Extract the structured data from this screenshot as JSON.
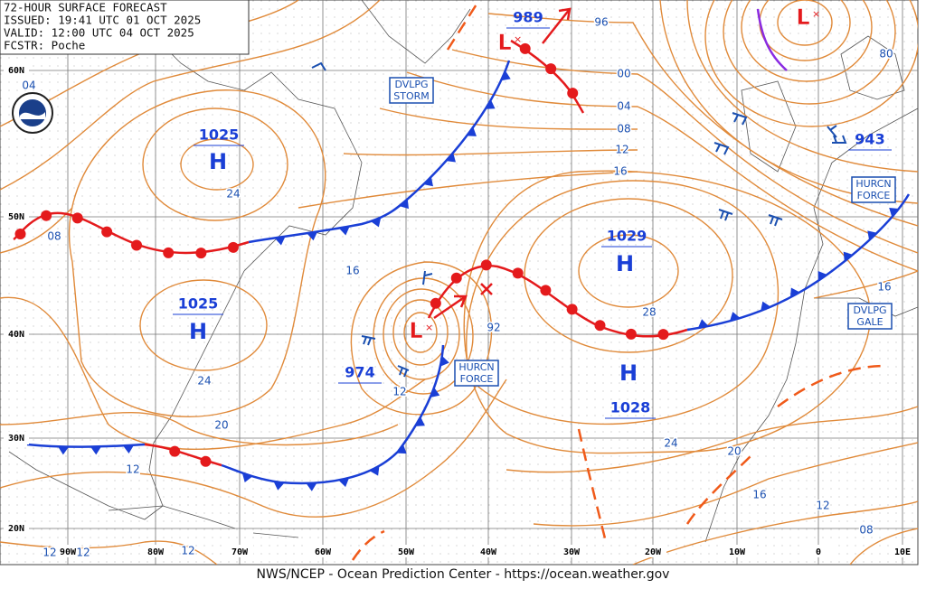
{
  "header": {
    "lines": [
      "72-HOUR SURFACE FORECAST",
      "ISSUED: 19:41 UTC 01 OCT 2025",
      "VALID:  12:00 UTC 04 OCT 2025",
      "FCSTR:  Poche"
    ]
  },
  "footer": "NWS/NCEP - Ocean Prediction Center - https://ocean.weather.gov",
  "highs": [
    {
      "label": "H",
      "pressure": "1025"
    },
    {
      "label": "H",
      "pressure": "1025"
    },
    {
      "label": "H",
      "pressure": "1029"
    },
    {
      "label": "H",
      "pressure": "1028"
    }
  ],
  "lows": [
    {
      "label": "L",
      "pressure": "974"
    },
    {
      "label": "L",
      "pressure": "989"
    },
    {
      "label": "L",
      "pressure": "943"
    }
  ],
  "isobar_labels": [
    "04",
    "08",
    "24",
    "16",
    "24",
    "20",
    "12",
    "12",
    "92",
    "28",
    "24",
    "20",
    "16",
    "12",
    "08",
    "16",
    "96",
    "00",
    "04",
    "08",
    "12",
    "16",
    "80",
    "12",
    "12",
    "12"
  ],
  "warnings": [
    {
      "lines": [
        "DVLPG",
        "STORM"
      ]
    },
    {
      "lines": [
        "HURCN",
        "FORCE"
      ]
    },
    {
      "lines": [
        "HURCN",
        "FORCE"
      ]
    },
    {
      "lines": [
        "DVLPG",
        "GALE"
      ]
    }
  ],
  "latitudes": [
    "60N",
    "50N",
    "40N",
    "30N",
    "20N"
  ],
  "longitudes": [
    "90W",
    "80W",
    "70W",
    "60W",
    "50W",
    "40W",
    "30W",
    "20W",
    "10W",
    "0",
    "10E"
  ]
}
